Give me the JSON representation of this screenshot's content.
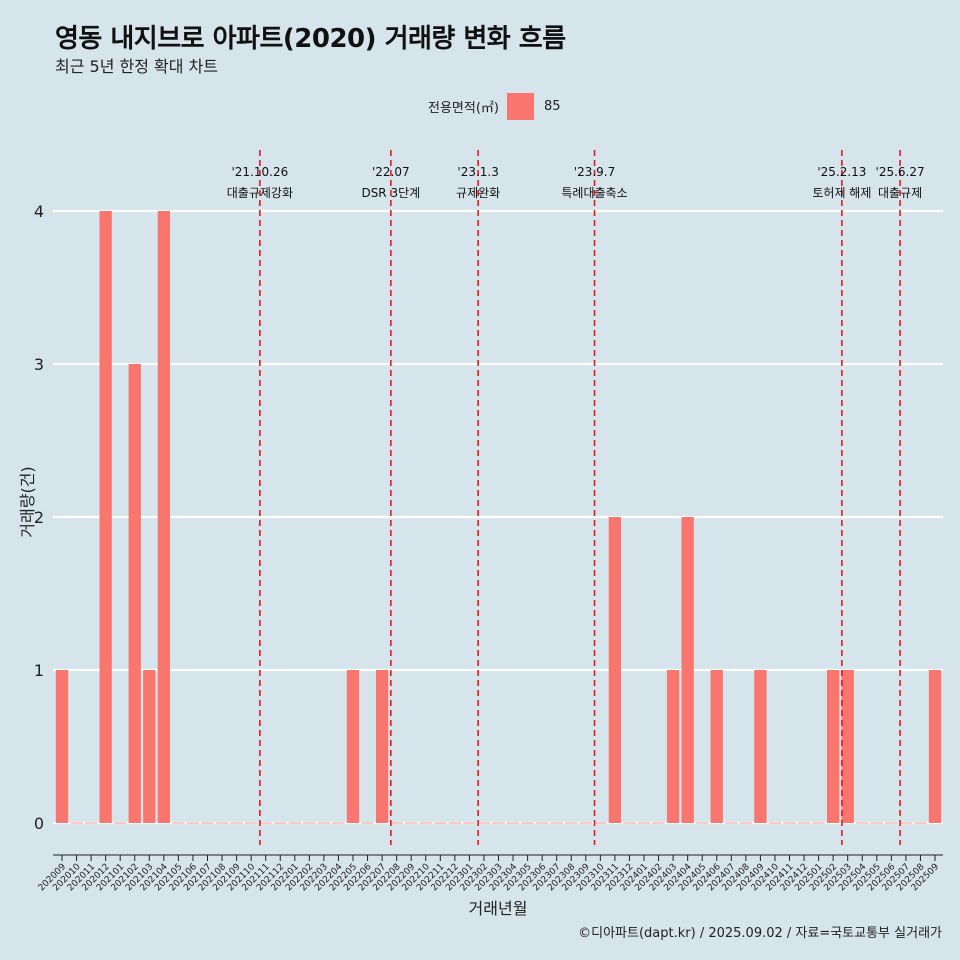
{
  "title": "영동 내지브로 아파트(2020) 거래량 변화 흐름",
  "subtitle": "최근 5년 한정 확대 차트",
  "legend": {
    "title": "전용면적(㎡)",
    "item": "85"
  },
  "caption": "©디아파트(dapt.kr) / 2025.09.02 / 자료=국토교통부 실거래가",
  "colors": {
    "bar": "#f8766d",
    "background": "#d6e4eb",
    "grid": "#ffffff",
    "event_line": "#e31a1c"
  },
  "chart_data": {
    "type": "bar",
    "xlabel": "거래년월",
    "ylabel": "거래량(건)",
    "ylim": [
      0,
      4
    ],
    "yticks": [
      0,
      1,
      2,
      3,
      4
    ],
    "categories": [
      "202009",
      "202010",
      "202011",
      "202012",
      "202101",
      "202102",
      "202103",
      "202104",
      "202105",
      "202106",
      "202107",
      "202108",
      "202109",
      "202110",
      "202111",
      "202112",
      "202201",
      "202202",
      "202203",
      "202204",
      "202205",
      "202206",
      "202207",
      "202208",
      "202209",
      "202210",
      "202211",
      "202212",
      "202301",
      "202302",
      "202303",
      "202304",
      "202305",
      "202306",
      "202307",
      "202308",
      "202309",
      "202310",
      "202311",
      "202312",
      "202401",
      "202402",
      "202403",
      "202404",
      "202405",
      "202406",
      "202407",
      "202408",
      "202409",
      "202410",
      "202411",
      "202412",
      "202501",
      "202502",
      "202503",
      "202504",
      "202505",
      "202506",
      "202507",
      "202508",
      "202509"
    ],
    "series": [
      {
        "name": "85",
        "values": [
          1,
          0,
          0,
          4,
          0,
          3,
          1,
          4,
          0,
          0,
          0,
          0,
          0,
          0,
          0,
          0,
          0,
          0,
          0,
          0,
          1,
          0,
          1,
          0,
          0,
          0,
          0,
          0,
          0,
          0,
          0,
          0,
          0,
          0,
          0,
          0,
          0,
          0,
          2,
          0,
          0,
          0,
          1,
          2,
          0,
          1,
          0,
          0,
          1,
          0,
          0,
          0,
          0,
          1,
          1,
          0,
          0,
          0,
          0,
          0,
          1
        ]
      }
    ],
    "events": [
      {
        "date": "'21.10.26",
        "label": "대출규제강화",
        "at": 13.6
      },
      {
        "date": "'22.07",
        "label": "DSR 3단계",
        "at": 22.6
      },
      {
        "date": "'23.1.3",
        "label": "규제완화",
        "at": 28.6
      },
      {
        "date": "'23.9.7",
        "label": "특례대출축소",
        "at": 36.6
      },
      {
        "date": "'25.2.13",
        "label": "토허제 해제",
        "at": 53.6
      },
      {
        "date": "'25.6.27",
        "label": "대출규제",
        "at": 57.6
      }
    ],
    "grid": true,
    "legend_position": "top"
  }
}
